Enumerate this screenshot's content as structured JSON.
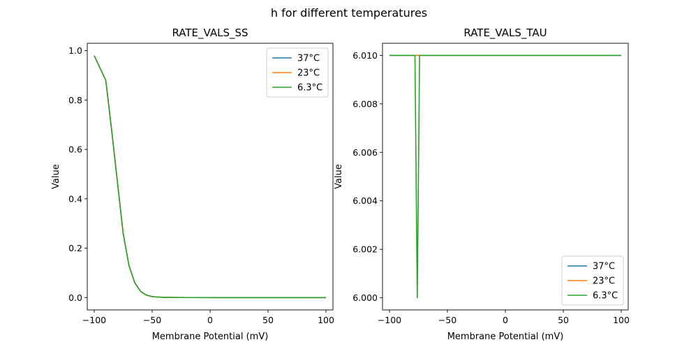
{
  "figure": {
    "suptitle": "h for different temperatures"
  },
  "colors": {
    "37C": "#1f77b4",
    "23C": "#ff7f0e",
    "6_3C": "#2ca02c"
  },
  "chart_data": [
    {
      "type": "line",
      "title": "RATE_VALS_SS",
      "xlabel": "Membrane Potential (mV)",
      "ylabel": "Value",
      "xlim": [
        -106,
        106
      ],
      "ylim": [
        -0.05,
        1.03
      ],
      "xticks": [
        -100,
        -50,
        0,
        50,
        100
      ],
      "xtick_labels": [
        "−100",
        "−50",
        "0",
        "50",
        "100"
      ],
      "yticks": [
        0.0,
        0.2,
        0.4,
        0.6,
        0.8,
        1.0
      ],
      "ytick_labels": [
        "0.0",
        "0.2",
        "0.4",
        "0.6",
        "0.8",
        "1.0"
      ],
      "legend": "top-right",
      "x": [
        -100,
        -90,
        -85,
        -80,
        -75,
        -70,
        -65,
        -60,
        -55,
        -50,
        -45,
        -40,
        -30,
        -20,
        0,
        50,
        100
      ],
      "series": [
        {
          "name": "37°C",
          "color": "#1f77b4",
          "values": [
            0.98,
            0.88,
            0.68,
            0.47,
            0.26,
            0.13,
            0.06,
            0.025,
            0.01,
            0.004,
            0.002,
            0.001,
            0.0005,
            0.0002,
            0.0,
            0.0,
            0.0
          ]
        },
        {
          "name": "23°C",
          "color": "#ff7f0e",
          "values": [
            0.98,
            0.88,
            0.68,
            0.47,
            0.26,
            0.13,
            0.06,
            0.025,
            0.01,
            0.004,
            0.002,
            0.001,
            0.0005,
            0.0002,
            0.0,
            0.0,
            0.0
          ]
        },
        {
          "name": "6.3°C",
          "color": "#2ca02c",
          "values": [
            0.98,
            0.88,
            0.68,
            0.47,
            0.26,
            0.13,
            0.06,
            0.025,
            0.01,
            0.004,
            0.002,
            0.001,
            0.0005,
            0.0002,
            0.0,
            0.0,
            0.0
          ]
        }
      ]
    },
    {
      "type": "line",
      "title": "RATE_VALS_TAU",
      "xlabel": "Membrane Potential (mV)",
      "ylabel": "Value",
      "xlim": [
        -106,
        106
      ],
      "ylim": [
        5.9995,
        6.0105
      ],
      "xticks": [
        -100,
        -50,
        0,
        50,
        100
      ],
      "xtick_labels": [
        "−100",
        "−50",
        "0",
        "50",
        "100"
      ],
      "yticks": [
        6.0,
        6.002,
        6.004,
        6.006,
        6.008,
        6.01
      ],
      "ytick_labels": [
        "6.000",
        "6.002",
        "6.004",
        "6.006",
        "6.008",
        "6.010"
      ],
      "legend": "bottom-right",
      "x": [
        -100,
        -78,
        -76,
        -74,
        100
      ],
      "series": [
        {
          "name": "37°C",
          "color": "#1f77b4",
          "values": [
            6.01,
            6.01,
            6.01,
            6.01,
            6.01
          ]
        },
        {
          "name": "23°C",
          "color": "#ff7f0e",
          "values": [
            6.01,
            6.01,
            6.01,
            6.01,
            6.01
          ]
        },
        {
          "name": "6.3°C",
          "color": "#2ca02c",
          "values": [
            6.01,
            6.01,
            6.0,
            6.01,
            6.01
          ]
        }
      ]
    }
  ]
}
